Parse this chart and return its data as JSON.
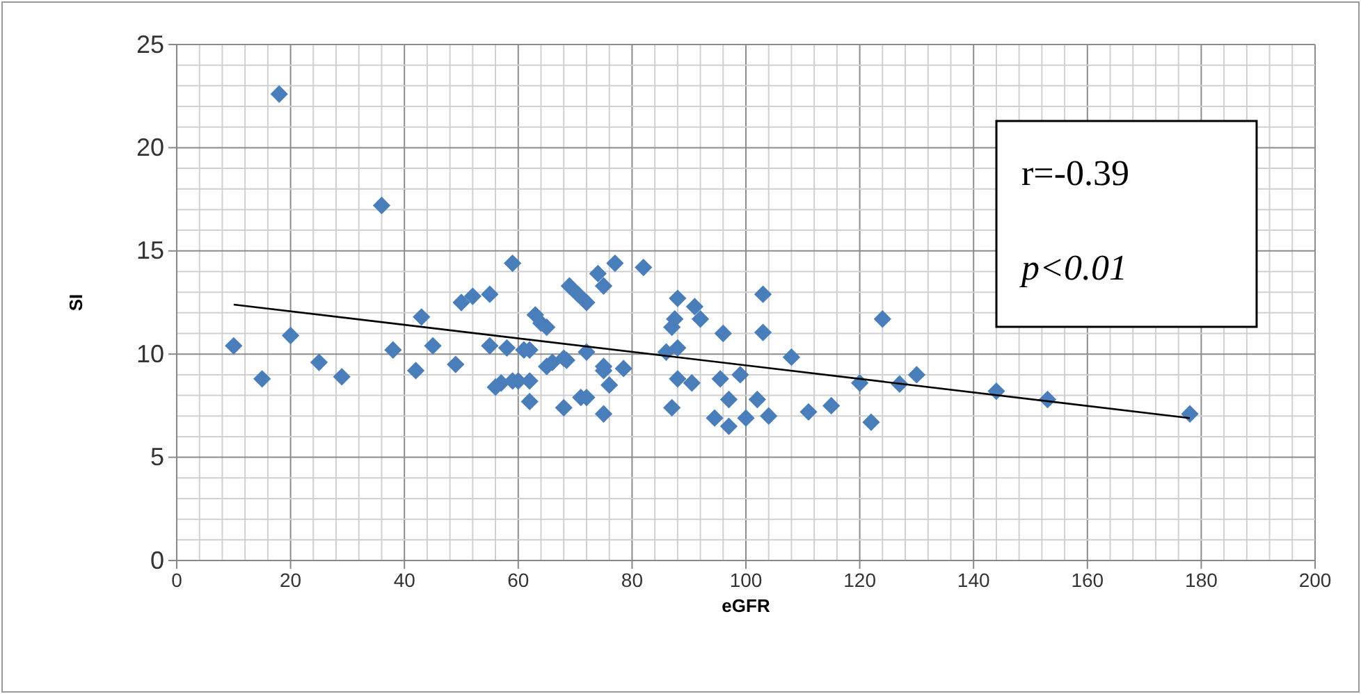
{
  "chart_data": {
    "type": "scatter",
    "xlabel": "eGFR",
    "ylabel": "SI",
    "xlim": [
      0,
      200
    ],
    "xticks": [
      0,
      20,
      40,
      60,
      80,
      100,
      120,
      140,
      160,
      180,
      200
    ],
    "ylim": [
      0,
      25
    ],
    "yticks": [
      0,
      5,
      10,
      15,
      20,
      25
    ],
    "grid": true,
    "marker": "diamond",
    "annotations": [
      "r=-0.39",
      "p<0.01"
    ],
    "series": [
      {
        "color": "#4a7ebb",
        "x": [
          10,
          15,
          18,
          20,
          25,
          29,
          36,
          38,
          42,
          43,
          45,
          49,
          50,
          52,
          55,
          55,
          56,
          57,
          58,
          59,
          59,
          60,
          61,
          62,
          62,
          62,
          63,
          64,
          65,
          65,
          66,
          68,
          68,
          68.5,
          69,
          70.5,
          71,
          72,
          72,
          72,
          74,
          75,
          75,
          75,
          75,
          76,
          77,
          78.5,
          82,
          86,
          87,
          87,
          87.5,
          88,
          88,
          88,
          90.5,
          91,
          92,
          94.5,
          95.5,
          96,
          97,
          97,
          99,
          100,
          102,
          103,
          103,
          104,
          108,
          111,
          115,
          120,
          122,
          124,
          127,
          130,
          144,
          153,
          178
        ],
        "values": [
          10.4,
          8.8,
          22.6,
          10.9,
          9.6,
          8.9,
          17.2,
          10.2,
          9.2,
          11.8,
          10.4,
          9.5,
          12.5,
          12.8,
          12.9,
          10.4,
          8.4,
          8.6,
          10.3,
          14.4,
          8.7,
          8.7,
          10.2,
          10.2,
          8.7,
          7.7,
          11.9,
          11.5,
          11.3,
          9.4,
          9.6,
          9.8,
          7.4,
          9.7,
          13.3,
          12.9,
          7.9,
          12.5,
          10.1,
          7.9,
          13.9,
          13.3,
          9.4,
          9.2,
          7.1,
          8.5,
          14.4,
          9.3,
          14.2,
          10.1,
          11.3,
          7.4,
          11.7,
          12.7,
          10.3,
          8.8,
          8.6,
          12.3,
          11.7,
          6.9,
          8.8,
          11.0,
          7.8,
          6.5,
          9.0,
          6.9,
          7.8,
          12.9,
          11.05,
          7.0,
          9.85,
          7.2,
          7.5,
          8.6,
          6.7,
          11.7,
          8.55,
          9.0,
          8.2,
          7.8,
          7.1
        ]
      },
      {
        "type": "line",
        "color": "#000000",
        "x": [
          10,
          178
        ],
        "values": [
          12.4,
          6.9
        ],
        "marker": "none"
      }
    ]
  }
}
